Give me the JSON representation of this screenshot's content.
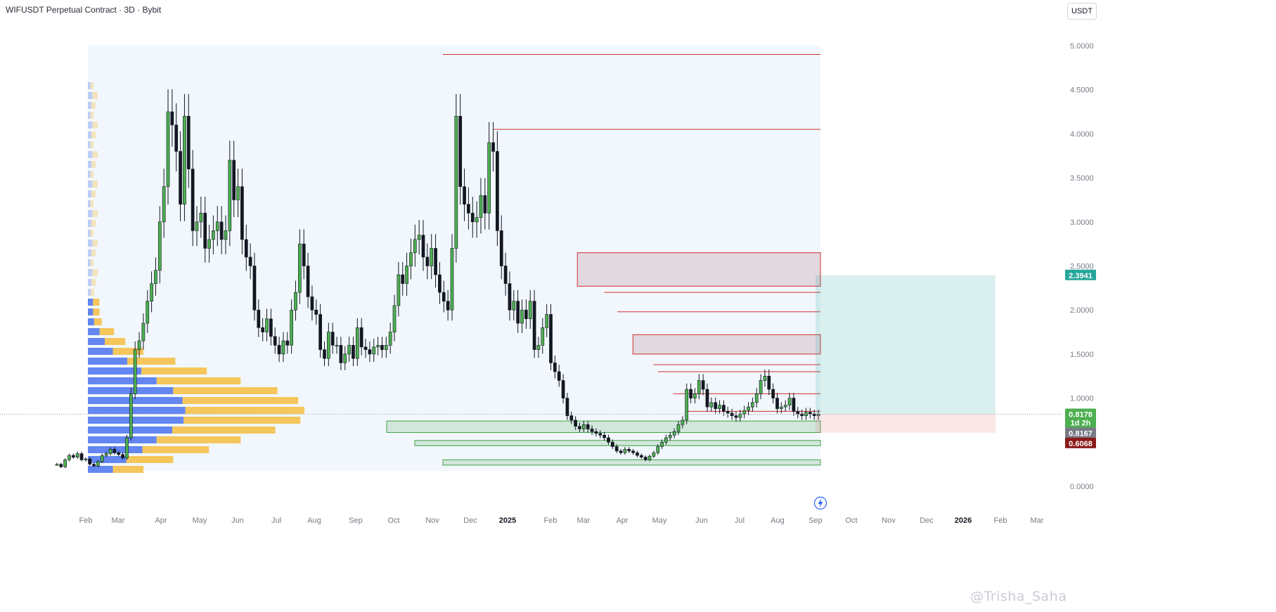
{
  "header": {
    "title": "WIFUSDT Perpetual Contract · 3D · Bybit",
    "currency_button": "USDT"
  },
  "watermark": "@Trisha_Saha",
  "price_axis": {
    "ticks": [
      "5.0000",
      "4.5000",
      "4.0000",
      "3.5000",
      "3.0000",
      "2.5000",
      "2.0000",
      "1.5000",
      "1.0000",
      "0.0000"
    ]
  },
  "time_axis": {
    "labels": [
      "Feb",
      "Mar",
      "Apr",
      "May",
      "Jun",
      "Jul",
      "Aug",
      "Sep",
      "Oct",
      "Nov",
      "Dec",
      "2025",
      "Feb",
      "Mar",
      "Apr",
      "May",
      "Jun",
      "Jul",
      "Aug",
      "Sep",
      "Oct",
      "Nov",
      "Dec",
      "2026",
      "Feb",
      "Mar"
    ]
  },
  "price_tags": {
    "target": "2.3941",
    "last_price": "0.8178",
    "countdown": "1d 2h",
    "mark": "0.8167",
    "stop": "0.6068"
  },
  "colors": {
    "up": "#4caf50",
    "down": "#131722",
    "resistance": "#d32f2f",
    "support": "#43a047",
    "target_zone": "#26a69a",
    "stop_zone": "#e57373",
    "profile_blue": "#5b7ff0",
    "profile_orange": "#f5c04a"
  },
  "icons": {
    "lightning": "lightning-icon"
  },
  "chart_data": {
    "type": "candlestick",
    "symbol": "WIFUSDT",
    "interval": "3D",
    "ylim": [
      0,
      5.0
    ],
    "closes": [
      0.25,
      0.22,
      0.3,
      0.35,
      0.33,
      0.37,
      0.3,
      0.31,
      0.25,
      0.23,
      0.28,
      0.35,
      0.37,
      0.42,
      0.38,
      0.36,
      0.32,
      0.55,
      1.05,
      1.55,
      1.65,
      1.85,
      2.1,
      2.3,
      2.45,
      3.0,
      3.4,
      4.25,
      4.1,
      3.8,
      3.2,
      4.2,
      3.6,
      2.9,
      3.0,
      3.1,
      2.7,
      2.8,
      2.9,
      3.0,
      2.8,
      2.9,
      3.7,
      3.25,
      3.4,
      2.8,
      2.6,
      2.5,
      2.0,
      1.8,
      1.75,
      1.9,
      1.7,
      1.6,
      1.5,
      1.65,
      1.6,
      2.0,
      2.2,
      2.75,
      2.5,
      2.15,
      2.0,
      1.95,
      1.55,
      1.45,
      1.75,
      1.6,
      1.6,
      1.4,
      1.5,
      1.6,
      1.45,
      1.8,
      1.58,
      1.55,
      1.5,
      1.58,
      1.6,
      1.55,
      1.6,
      1.75,
      2.05,
      2.4,
      2.3,
      2.5,
      2.65,
      2.8,
      2.85,
      2.6,
      2.5,
      2.7,
      2.4,
      2.2,
      2.1,
      2.0,
      2.7,
      4.2,
      3.4,
      3.2,
      3.1,
      3.0,
      3.05,
      3.3,
      3.1,
      3.9,
      3.8,
      2.9,
      2.5,
      2.3,
      2.0,
      2.1,
      1.85,
      2.0,
      1.9,
      2.1,
      1.55,
      1.6,
      1.8,
      1.95,
      1.4,
      1.3,
      1.2,
      1.0,
      0.8,
      0.75,
      0.68,
      0.65,
      0.7,
      0.65,
      0.62,
      0.6,
      0.58,
      0.55,
      0.5,
      0.45,
      0.4,
      0.38,
      0.42,
      0.4,
      0.38,
      0.35,
      0.33,
      0.3,
      0.34,
      0.38,
      0.45,
      0.5,
      0.55,
      0.58,
      0.62,
      0.7,
      0.75,
      1.1,
      1.0,
      1.05,
      1.2,
      1.1,
      0.9,
      0.95,
      0.88,
      0.92,
      0.85,
      0.83,
      0.8,
      0.78,
      0.82,
      0.86,
      0.9,
      0.95,
      1.05,
      1.2,
      1.25,
      1.1,
      1.0,
      0.88,
      0.9,
      0.92,
      1.0,
      0.85,
      0.82,
      0.8,
      0.84,
      0.82,
      0.8,
      0.8178
    ],
    "zones": [
      {
        "type": "resistance",
        "top": 4.9,
        "bottom": 4.9
      },
      {
        "type": "resistance",
        "top": 4.05,
        "bottom": 4.05
      },
      {
        "type": "resistance",
        "top": 2.65,
        "bottom": 2.27
      },
      {
        "type": "resistance",
        "top": 2.2,
        "bottom": 2.2
      },
      {
        "type": "resistance",
        "top": 1.98,
        "bottom": 1.98
      },
      {
        "type": "resistance",
        "top": 1.72,
        "bottom": 1.5
      },
      {
        "type": "resistance",
        "top": 1.38,
        "bottom": 1.38
      },
      {
        "type": "resistance",
        "top": 1.3,
        "bottom": 1.3
      },
      {
        "type": "resistance",
        "top": 1.05,
        "bottom": 1.05
      },
      {
        "type": "resistance",
        "top": 0.85,
        "bottom": 0.85
      },
      {
        "type": "support",
        "top": 0.74,
        "bottom": 0.61
      },
      {
        "type": "support",
        "top": 0.52,
        "bottom": 0.46
      },
      {
        "type": "support",
        "top": 0.3,
        "bottom": 0.24
      }
    ],
    "position": {
      "entry": 0.8178,
      "target": 2.3941,
      "stop": 0.6068
    },
    "current_price": 0.8178
  }
}
